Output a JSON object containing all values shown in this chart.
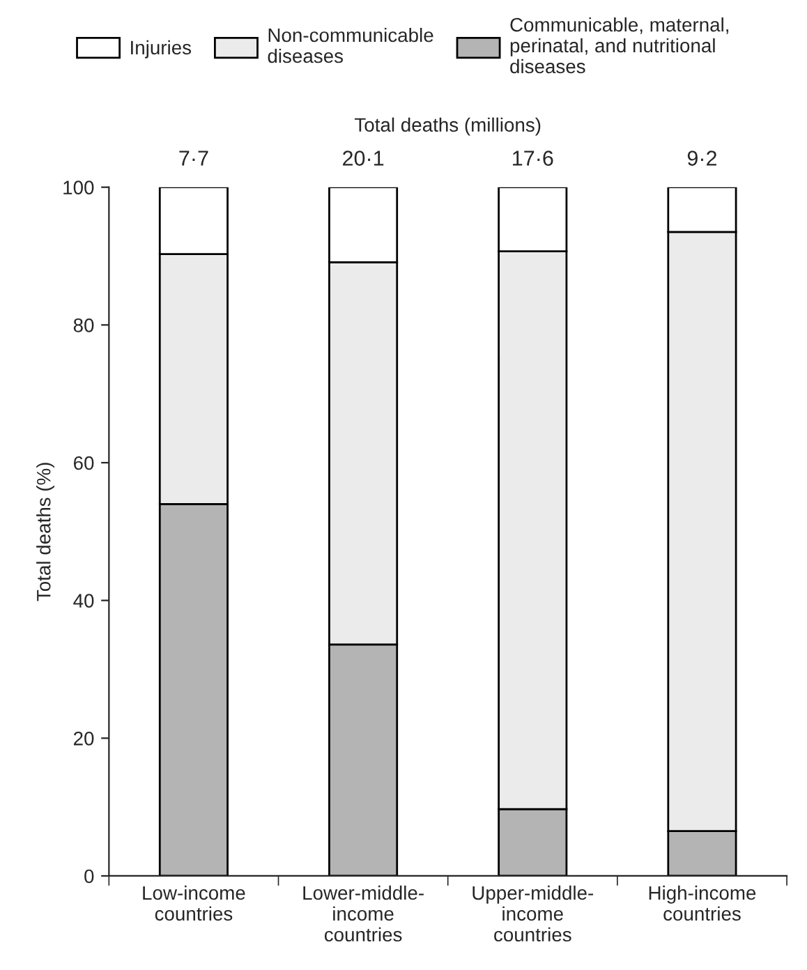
{
  "chart_data": {
    "type": "bar",
    "stacked": true,
    "ylabel": "Total deaths (%)",
    "categories": [
      "Low-income\ncountries",
      "Lower-middle-\nincome\ncountries",
      "Upper-middle-\nincome\ncountries",
      "High-income\ncountries"
    ],
    "series": [
      {
        "name": "Communicable, maternal,\nperinatal, and nutritional\ndiseases",
        "color": "#b4b4b4",
        "values": [
          54,
          33.6,
          9.7,
          6.5
        ]
      },
      {
        "name": "Non-communicable\ndiseases",
        "color": "#ebebeb",
        "values": [
          36.3,
          55.5,
          81,
          87
        ]
      },
      {
        "name": "Injuries",
        "color": "#ffffff",
        "values": [
          9.7,
          10.9,
          9.3,
          6.5
        ]
      }
    ],
    "totals": [
      "7·7",
      "20·1",
      "17·6",
      "9·2"
    ],
    "annotations": [
      "Total deaths (millions)"
    ],
    "ylim": [
      0,
      100
    ],
    "yticks": [
      0,
      20,
      40,
      60,
      80,
      100
    ],
    "grid": false,
    "legend": "top"
  }
}
